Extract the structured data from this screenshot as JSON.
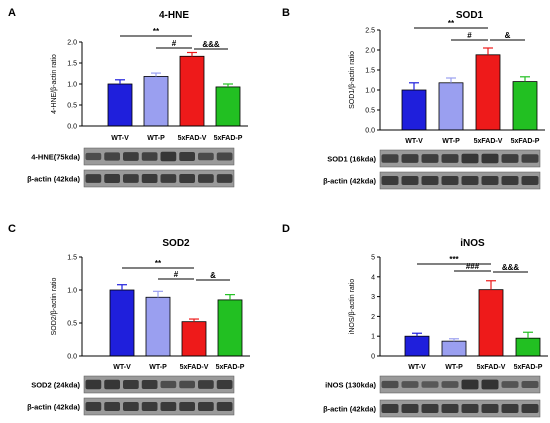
{
  "colors": {
    "WT-V": "#1f1fdc",
    "WT-P": "#9a9ff0",
    "5xFAD-V": "#ee1a1a",
    "5xFAD-P": "#22c022",
    "axis": "#000000",
    "blot_bg": "#9a9a9a",
    "blot_band": "#2a2a2a"
  },
  "chart_data": [
    {
      "panel": "A",
      "title": "4-HNE",
      "type": "bar",
      "categories": [
        "WT-V",
        "WT-P",
        "5xFAD-V",
        "5xFAD-P"
      ],
      "values": [
        1.0,
        1.18,
        1.66,
        0.93
      ],
      "errors": [
        0.1,
        0.08,
        0.09,
        0.07
      ],
      "ylabel": "4-HNE/β-actin ratio",
      "ylim": [
        0,
        2.0
      ],
      "yticks": [
        "0.0",
        "0.5",
        "1.0",
        "1.5",
        "2.0"
      ],
      "annotations": [
        {
          "text": "**",
          "from": 0,
          "to": 2
        },
        {
          "text": "#",
          "from": 1,
          "to": 2
        },
        {
          "text": "&&&",
          "from": 2,
          "to": 3
        }
      ],
      "blots": [
        {
          "label": "4-HNE(75kda)",
          "intensities": [
            0.55,
            0.7,
            0.8,
            0.75,
            0.9,
            0.85,
            0.6,
            0.65
          ]
        },
        {
          "label": "β-actin (42kda)",
          "intensities": [
            0.8,
            0.85,
            0.8,
            0.85,
            0.8,
            0.85,
            0.8,
            0.8
          ]
        }
      ]
    },
    {
      "panel": "B",
      "title": "SOD1",
      "type": "bar",
      "categories": [
        "WT-V",
        "WT-P",
        "5xFAD-V",
        "5xFAD-P"
      ],
      "values": [
        1.0,
        1.18,
        1.88,
        1.21
      ],
      "errors": [
        0.18,
        0.12,
        0.17,
        0.12
      ],
      "ylabel": "SOD1/β-actin ratio",
      "ylim": [
        0,
        2.5
      ],
      "yticks": [
        "0.0",
        "0.5",
        "1.0",
        "1.5",
        "2.0",
        "2.5"
      ],
      "annotations": [
        {
          "text": "**",
          "from": 0,
          "to": 2
        },
        {
          "text": "#",
          "from": 1,
          "to": 2
        },
        {
          "text": "&",
          "from": 2,
          "to": 3
        }
      ],
      "blots": [
        {
          "label": "SOD1 (16kda)",
          "intensities": [
            0.75,
            0.8,
            0.8,
            0.8,
            0.9,
            0.9,
            0.8,
            0.75
          ]
        },
        {
          "label": "β-actin (42kda)",
          "intensities": [
            0.85,
            0.85,
            0.85,
            0.85,
            0.85,
            0.85,
            0.85,
            0.85
          ]
        }
      ]
    },
    {
      "panel": "C",
      "title": "SOD2",
      "type": "bar",
      "categories": [
        "WT-V",
        "WT-P",
        "5xFAD-V",
        "5xFAD-P"
      ],
      "values": [
        1.0,
        0.89,
        0.52,
        0.85
      ],
      "errors": [
        0.08,
        0.09,
        0.04,
        0.08
      ],
      "ylabel": "SOD2/β-actin ratio",
      "ylim": [
        0,
        1.5
      ],
      "yticks": [
        "0.0",
        "0.5",
        "1.0",
        "1.5"
      ],
      "annotations": [
        {
          "text": "**",
          "from": 0,
          "to": 2
        },
        {
          "text": "#",
          "from": 1,
          "to": 2
        },
        {
          "text": "&",
          "from": 2,
          "to": 3
        }
      ],
      "blots": [
        {
          "label": "SOD2 (24kda)",
          "intensities": [
            0.9,
            0.9,
            0.85,
            0.85,
            0.55,
            0.6,
            0.8,
            0.85
          ]
        },
        {
          "label": "β-actin (42kda)",
          "intensities": [
            0.85,
            0.85,
            0.85,
            0.85,
            0.85,
            0.85,
            0.85,
            0.85
          ]
        }
      ]
    },
    {
      "panel": "D",
      "title": "iNOS",
      "type": "bar",
      "categories": [
        "WT-V",
        "WT-P",
        "5xFAD-V",
        "5xFAD-P"
      ],
      "values": [
        1.0,
        0.75,
        3.35,
        0.9
      ],
      "errors": [
        0.15,
        0.12,
        0.45,
        0.3
      ],
      "ylabel": "iNOS/β-actin ratio",
      "ylim": [
        0,
        5
      ],
      "yticks": [
        "0",
        "1",
        "2",
        "3",
        "4",
        "5"
      ],
      "annotations": [
        {
          "text": "***",
          "from": 0,
          "to": 2
        },
        {
          "text": "###",
          "from": 1,
          "to": 2
        },
        {
          "text": "&&&",
          "from": 2,
          "to": 3
        }
      ],
      "blots": [
        {
          "label": "iNOS (130kda)",
          "intensities": [
            0.55,
            0.45,
            0.4,
            0.45,
            0.95,
            0.95,
            0.45,
            0.5
          ]
        },
        {
          "label": "β-actin (42kda)",
          "intensities": [
            0.85,
            0.85,
            0.85,
            0.85,
            0.85,
            0.85,
            0.85,
            0.85
          ]
        }
      ]
    }
  ]
}
